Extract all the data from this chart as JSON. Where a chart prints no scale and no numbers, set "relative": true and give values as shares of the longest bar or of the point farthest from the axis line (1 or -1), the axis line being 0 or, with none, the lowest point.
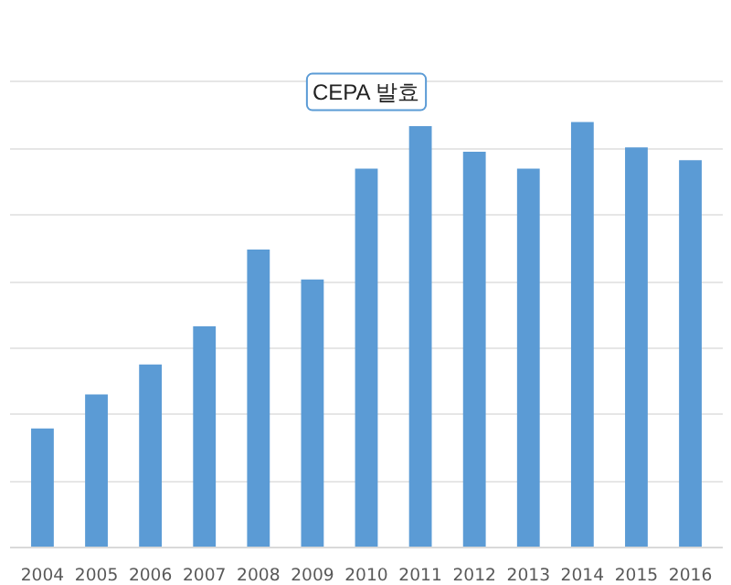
{
  "chart_data": {
    "type": "bar",
    "relative": true,
    "categories": [
      "2004",
      "2005",
      "2006",
      "2007",
      "2008",
      "2009",
      "2010",
      "2011",
      "2012",
      "2013",
      "2014",
      "2015",
      "2016"
    ],
    "values": [
      0.28,
      0.36,
      0.43,
      0.52,
      0.7,
      0.63,
      0.89,
      0.99,
      0.93,
      0.89,
      1.0,
      0.94,
      0.91
    ],
    "color": "#5b9bd5",
    "grid": "y",
    "annotations": [
      {
        "text": "CEPA 발효",
        "x": "2010",
        "y": 0.89
      }
    ]
  }
}
